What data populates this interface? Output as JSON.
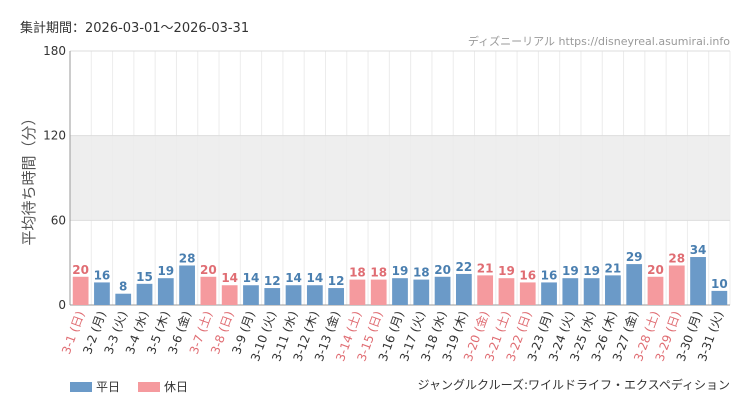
{
  "header": {
    "period": "集計期間：2026-03-01～2026-03-31",
    "source": "ディズニーリアル https://disneyreal.asumirai.info"
  },
  "footer": {
    "attraction": "ジャングルクルーズ:ワイルドライフ・エクスペディション"
  },
  "legend": {
    "weekday_label": "平日",
    "holiday_label": "休日"
  },
  "colors": {
    "weekday": "#6b9ac8",
    "holiday": "#f59a9e",
    "weekday_text": "#4a7fb0",
    "holiday_text": "#e06d73",
    "band": "#eeeeee"
  },
  "chart_data": {
    "type": "bar",
    "ylabel": "平均待ち時間（分）",
    "ylim": [
      0,
      180
    ],
    "yticks": [
      0,
      60,
      120,
      180
    ],
    "categories": [
      "3-1 (日)",
      "3-2 (月)",
      "3-3 (火)",
      "3-4 (水)",
      "3-5 (木)",
      "3-6 (金)",
      "3-7 (土)",
      "3-8 (日)",
      "3-9 (月)",
      "3-10 (火)",
      "3-11 (水)",
      "3-12 (木)",
      "3-13 (金)",
      "3-14 (土)",
      "3-15 (日)",
      "3-16 (月)",
      "3-17 (火)",
      "3-18 (水)",
      "3-19 (木)",
      "3-20 (金)",
      "3-21 (土)",
      "3-22 (日)",
      "3-23 (月)",
      "3-24 (火)",
      "3-25 (水)",
      "3-26 (木)",
      "3-27 (金)",
      "3-28 (土)",
      "3-29 (日)",
      "3-30 (月)",
      "3-31 (火)"
    ],
    "values": [
      20,
      16,
      8,
      15,
      19,
      28,
      20,
      14,
      14,
      12,
      14,
      14,
      12,
      18,
      18,
      19,
      18,
      20,
      22,
      21,
      19,
      16,
      16,
      19,
      19,
      21,
      29,
      20,
      28,
      34,
      10
    ],
    "holiday": [
      true,
      false,
      false,
      false,
      false,
      false,
      true,
      true,
      false,
      false,
      false,
      false,
      false,
      true,
      true,
      false,
      false,
      false,
      false,
      true,
      true,
      true,
      false,
      false,
      false,
      false,
      false,
      true,
      true,
      false,
      false
    ]
  }
}
